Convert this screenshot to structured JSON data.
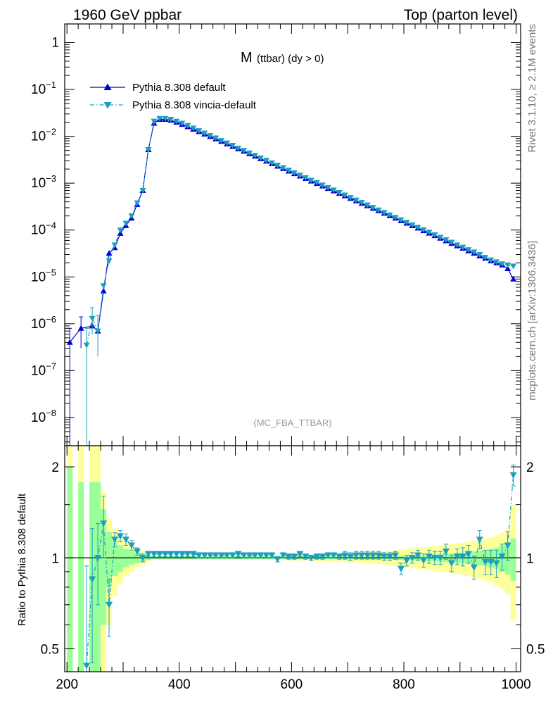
{
  "header": {
    "left": "1960 GeV ppbar",
    "right": "Top (parton level)"
  },
  "side_labels": {
    "rivet": "Rivet 3.1.10, ≥ 2.1M events",
    "mcplots": "mcplots.cern.ch [arXiv:1306.3436]"
  },
  "chart_data": [
    {
      "type": "line",
      "panel": "main",
      "title_main": "M",
      "title_sub": "(ttbar) (dy > 0)",
      "watermark": "(MC_FBA_TTBAR)",
      "xlabel": "",
      "ylabel": "",
      "log_y": true,
      "xlim": [
        196,
        1008
      ],
      "ylim": [
        2.5e-09,
        2.5
      ],
      "y_tick_labels": [
        "1",
        "10^-1",
        "10^-2",
        "10^-3",
        "10^-4",
        "10^-5",
        "10^-6",
        "10^-7",
        "10^-8"
      ],
      "legend_position": "top-left",
      "series": [
        {
          "name": "Pythia 8.308 default",
          "color": "#0000cc",
          "marker": "triangle-up",
          "line": "solid",
          "x": [
            205,
            225,
            245,
            255,
            265,
            275,
            285,
            295,
            305,
            315,
            325,
            335,
            345,
            355,
            365,
            375,
            385,
            395,
            405,
            415,
            425,
            435,
            445,
            455,
            465,
            475,
            485,
            495,
            505,
            515,
            525,
            535,
            545,
            555,
            565,
            575,
            585,
            595,
            605,
            615,
            625,
            635,
            645,
            655,
            665,
            675,
            685,
            695,
            705,
            715,
            725,
            735,
            745,
            755,
            765,
            775,
            785,
            795,
            805,
            815,
            825,
            835,
            845,
            855,
            865,
            875,
            885,
            895,
            905,
            915,
            925,
            935,
            945,
            955,
            965,
            975,
            985,
            995
          ],
          "y": [
            4e-07,
            8e-07,
            9e-07,
            7e-07,
            5e-06,
            3.2e-05,
            4.2e-05,
            8.5e-05,
            0.000125,
            0.00018,
            0.00035,
            0.0007,
            0.0052,
            0.019,
            0.023,
            0.023,
            0.022,
            0.02,
            0.018,
            0.016,
            0.0142,
            0.0126,
            0.0112,
            0.0099,
            0.0088,
            0.0078,
            0.0069,
            0.0061,
            0.0054,
            0.0048,
            0.00425,
            0.00376,
            0.00333,
            0.00295,
            0.00261,
            0.00231,
            0.00205,
            0.00181,
            0.0016,
            0.00142,
            0.00126,
            0.00111,
            0.000985,
            0.000872,
            0.000772,
            0.000684,
            0.000605,
            0.000536,
            0.000474,
            0.00042,
            0.000372,
            0.000329,
            0.000291,
            0.000258,
            0.000228,
            0.000202,
            0.000179,
            0.000158,
            0.00014,
            0.000124,
            0.00011,
            9.7e-05,
            8.6e-05,
            7.6e-05,
            6.7e-05,
            5.9e-05,
            5.2e-05,
            4.6e-05,
            4.1e-05,
            3.6e-05,
            3.2e-05,
            2.8e-05,
            2.5e-05,
            2.2e-05,
            2e-05,
            1.8e-05,
            1.5e-05,
            9e-06
          ]
        },
        {
          "name": "Pythia 8.308 vincia-default",
          "color": "#1a9fbf",
          "marker": "triangle-down",
          "line": "dash-dot",
          "x": [
            235,
            245,
            255,
            265,
            275,
            285,
            295,
            305,
            315,
            325,
            335,
            345,
            355,
            365,
            375,
            385,
            395,
            405,
            415,
            425,
            435,
            445,
            455,
            465,
            475,
            485,
            495,
            505,
            515,
            525,
            535,
            545,
            555,
            565,
            575,
            585,
            595,
            605,
            615,
            625,
            635,
            645,
            655,
            665,
            675,
            685,
            695,
            705,
            715,
            725,
            735,
            745,
            755,
            765,
            775,
            785,
            795,
            805,
            815,
            825,
            835,
            845,
            855,
            865,
            875,
            885,
            895,
            905,
            915,
            925,
            935,
            945,
            955,
            965,
            975,
            985,
            995
          ],
          "y": [
            3.5e-07,
            1.3e-06,
            7e-07,
            6.5e-06,
            2.2e-05,
            4.8e-05,
            0.0001,
            0.00014,
            0.0002,
            0.00038,
            0.0007,
            0.0052,
            0.021,
            0.024,
            0.024,
            0.023,
            0.021,
            0.019,
            0.017,
            0.015,
            0.0132,
            0.0117,
            0.0104,
            0.0092,
            0.0081,
            0.0072,
            0.0064,
            0.0056,
            0.005,
            0.00442,
            0.00392,
            0.00347,
            0.00307,
            0.00272,
            0.00241,
            0.00213,
            0.00189,
            0.00167,
            0.00148,
            0.00131,
            0.00116,
            0.00103,
            0.00091,
            0.000805,
            0.000713,
            0.00063,
            0.000558,
            0.000493,
            0.000437,
            0.000387,
            0.000342,
            0.000303,
            0.000268,
            0.000237,
            0.00021,
            0.000186,
            0.000165,
            0.000146,
            0.000129,
            0.000114,
            0.000101,
            9e-05,
            7.9e-05,
            7e-05,
            6.2e-05,
            5.5e-05,
            4.8e-05,
            4.3e-05,
            3.8e-05,
            3.4e-05,
            3e-05,
            2.6e-05,
            2.3e-05,
            2.1e-05,
            1.9e-05,
            1.8e-05,
            1.7e-05
          ]
        }
      ]
    },
    {
      "type": "line",
      "panel": "ratio",
      "xlabel": "",
      "ylabel": "Ratio to Pythia 8.308 default",
      "log_y": true,
      "xlim": [
        196,
        1008
      ],
      "ylim": [
        0.42,
        2.35
      ],
      "x_ticks": [
        200,
        400,
        600,
        800,
        1000
      ],
      "y_ticks": [
        0.5,
        1,
        2
      ],
      "reference_line": 1,
      "bands": {
        "green_color": "#99ff99",
        "yellow_color": "#ffff99",
        "x": [
          205,
          225,
          245,
          255,
          265,
          275,
          285,
          295,
          305,
          315,
          325,
          335,
          345,
          355,
          365,
          375,
          385,
          395,
          405,
          415,
          425,
          435,
          445,
          455,
          465,
          475,
          485,
          495,
          505,
          515,
          525,
          535,
          545,
          555,
          565,
          575,
          585,
          595,
          605,
          615,
          625,
          635,
          645,
          655,
          665,
          675,
          685,
          695,
          705,
          715,
          725,
          735,
          745,
          755,
          765,
          775,
          785,
          795,
          805,
          815,
          825,
          835,
          845,
          855,
          865,
          875,
          885,
          895,
          905,
          915,
          925,
          935,
          945,
          955,
          965,
          975,
          985,
          995
        ],
        "width": [
          10,
          10,
          10,
          10,
          10,
          10,
          10,
          10,
          10,
          10,
          10,
          10,
          10,
          10,
          10,
          10,
          10,
          10,
          10,
          10,
          10,
          10,
          10,
          10,
          10,
          10,
          10,
          10,
          10,
          10,
          10,
          10,
          10,
          10,
          10,
          10,
          10,
          10,
          10,
          10,
          10,
          10,
          10,
          10,
          10,
          10,
          10,
          10,
          10,
          10,
          10,
          10,
          10,
          10,
          10,
          10,
          10,
          10,
          10,
          10,
          10,
          10,
          10,
          10,
          10,
          10,
          10,
          10,
          10,
          10,
          10,
          10,
          10,
          10,
          10,
          10,
          10,
          10
        ],
        "green_lo": [
          0.42,
          0.42,
          0.42,
          0.42,
          0.6,
          0.8,
          0.87,
          0.9,
          0.93,
          0.95,
          0.96,
          0.97,
          0.985,
          0.99,
          0.99,
          0.99,
          0.99,
          0.99,
          0.99,
          0.99,
          0.99,
          0.99,
          0.99,
          0.99,
          0.99,
          0.99,
          0.99,
          0.99,
          0.99,
          0.99,
          0.99,
          0.99,
          0.99,
          0.99,
          0.99,
          0.99,
          0.99,
          0.99,
          0.99,
          0.99,
          0.99,
          0.99,
          0.99,
          0.99,
          0.99,
          0.99,
          0.99,
          0.99,
          0.99,
          0.99,
          0.99,
          0.99,
          0.99,
          0.99,
          0.99,
          0.99,
          0.985,
          0.985,
          0.985,
          0.98,
          0.98,
          0.98,
          0.975,
          0.975,
          0.97,
          0.97,
          0.965,
          0.96,
          0.96,
          0.955,
          0.95,
          0.945,
          0.94,
          0.93,
          0.92,
          0.9,
          0.88,
          0.84
        ],
        "green_hi": [
          2.0,
          1.78,
          1.78,
          1.78,
          1.45,
          1.22,
          1.14,
          1.1,
          1.07,
          1.05,
          1.04,
          1.03,
          1.015,
          1.01,
          1.01,
          1.01,
          1.01,
          1.01,
          1.01,
          1.01,
          1.01,
          1.01,
          1.01,
          1.01,
          1.01,
          1.01,
          1.01,
          1.01,
          1.01,
          1.01,
          1.01,
          1.01,
          1.01,
          1.01,
          1.01,
          1.01,
          1.01,
          1.01,
          1.01,
          1.01,
          1.01,
          1.01,
          1.01,
          1.01,
          1.01,
          1.01,
          1.01,
          1.01,
          1.01,
          1.01,
          1.01,
          1.01,
          1.01,
          1.01,
          1.01,
          1.01,
          1.015,
          1.015,
          1.015,
          1.02,
          1.02,
          1.02,
          1.025,
          1.025,
          1.03,
          1.03,
          1.035,
          1.04,
          1.04,
          1.045,
          1.05,
          1.055,
          1.06,
          1.07,
          1.08,
          1.1,
          1.12,
          1.16
        ],
        "yellow_lo": [
          0.42,
          0.42,
          0.42,
          0.42,
          0.42,
          0.6,
          0.75,
          0.82,
          0.87,
          0.9,
          0.93,
          0.95,
          0.975,
          0.985,
          0.985,
          0.985,
          0.985,
          0.985,
          0.985,
          0.985,
          0.985,
          0.985,
          0.985,
          0.985,
          0.985,
          0.985,
          0.985,
          0.985,
          0.985,
          0.985,
          0.985,
          0.985,
          0.985,
          0.985,
          0.985,
          0.985,
          0.985,
          0.98,
          0.98,
          0.98,
          0.98,
          0.98,
          0.975,
          0.975,
          0.975,
          0.97,
          0.97,
          0.97,
          0.965,
          0.965,
          0.96,
          0.96,
          0.955,
          0.955,
          0.95,
          0.945,
          0.94,
          0.935,
          0.93,
          0.925,
          0.92,
          0.915,
          0.91,
          0.905,
          0.9,
          0.895,
          0.89,
          0.885,
          0.88,
          0.87,
          0.86,
          0.85,
          0.84,
          0.83,
          0.81,
          0.79,
          0.76,
          0.62
        ],
        "yellow_hi": [
          2.35,
          2.35,
          2.35,
          2.35,
          1.65,
          1.35,
          1.25,
          1.18,
          1.13,
          1.1,
          1.07,
          1.05,
          1.025,
          1.015,
          1.015,
          1.015,
          1.015,
          1.015,
          1.015,
          1.015,
          1.015,
          1.015,
          1.015,
          1.015,
          1.015,
          1.015,
          1.015,
          1.015,
          1.015,
          1.015,
          1.015,
          1.015,
          1.015,
          1.015,
          1.015,
          1.015,
          1.015,
          1.02,
          1.02,
          1.02,
          1.02,
          1.02,
          1.025,
          1.025,
          1.025,
          1.03,
          1.03,
          1.03,
          1.035,
          1.035,
          1.04,
          1.04,
          1.045,
          1.045,
          1.05,
          1.055,
          1.06,
          1.065,
          1.07,
          1.075,
          1.08,
          1.085,
          1.09,
          1.095,
          1.1,
          1.105,
          1.11,
          1.115,
          1.12,
          1.13,
          1.14,
          1.15,
          1.16,
          1.17,
          1.19,
          1.21,
          1.24,
          1.5
        ]
      },
      "series": [
        {
          "name": "Pythia 8.308 vincia-default",
          "color": "#1a9fbf",
          "marker": "triangle-down",
          "line": "dash-dot",
          "x": [
            235,
            245,
            255,
            265,
            275,
            285,
            295,
            305,
            315,
            325,
            335,
            345,
            355,
            365,
            375,
            385,
            395,
            405,
            415,
            425,
            435,
            445,
            455,
            465,
            475,
            485,
            495,
            505,
            515,
            525,
            535,
            545,
            555,
            565,
            575,
            585,
            595,
            605,
            615,
            625,
            635,
            645,
            655,
            665,
            675,
            685,
            695,
            705,
            715,
            725,
            735,
            745,
            755,
            765,
            775,
            785,
            795,
            805,
            815,
            825,
            835,
            845,
            855,
            865,
            875,
            885,
            895,
            905,
            915,
            925,
            935,
            945,
            955,
            965,
            975,
            985,
            995
          ],
          "y": [
            0.44,
            0.85,
            1.0,
            1.3,
            0.7,
            1.15,
            1.18,
            1.15,
            1.1,
            1.05,
            1.0,
            1.03,
            1.03,
            1.03,
            1.03,
            1.03,
            1.03,
            1.03,
            1.03,
            1.03,
            1.02,
            1.02,
            1.02,
            1.02,
            1.02,
            1.02,
            1.02,
            1.03,
            1.02,
            1.02,
            1.02,
            1.02,
            1.02,
            1.02,
            0.99,
            1.02,
            1.01,
            1.01,
            1.03,
            1.01,
            1.0,
            1.01,
            1.01,
            1.02,
            1.02,
            1.01,
            1.02,
            1.01,
            1.02,
            1.02,
            1.02,
            1.02,
            1.02,
            1.01,
            1.01,
            1.02,
            0.92,
            0.98,
            1.0,
            1.02,
            0.98,
            1.01,
            1.0,
            1.0,
            1.05,
            0.96,
            1.01,
            1.01,
            1.03,
            0.93,
            1.15,
            0.97,
            0.97,
            0.96,
            1.01,
            1.1,
            1.88
          ],
          "err": [
            0.5,
            0.4,
            0.3,
            0.3,
            0.15,
            0.06,
            0.05,
            0.05,
            0.04,
            0.03,
            0.03,
            0.02,
            0.02,
            0.02,
            0.02,
            0.02,
            0.02,
            0.02,
            0.02,
            0.02,
            0.02,
            0.02,
            0.02,
            0.02,
            0.02,
            0.02,
            0.02,
            0.02,
            0.02,
            0.02,
            0.02,
            0.02,
            0.02,
            0.02,
            0.02,
            0.02,
            0.02,
            0.02,
            0.02,
            0.02,
            0.02,
            0.02,
            0.02,
            0.02,
            0.02,
            0.02,
            0.03,
            0.03,
            0.03,
            0.03,
            0.03,
            0.03,
            0.03,
            0.03,
            0.03,
            0.03,
            0.04,
            0.04,
            0.04,
            0.04,
            0.05,
            0.05,
            0.05,
            0.05,
            0.06,
            0.06,
            0.06,
            0.07,
            0.07,
            0.08,
            0.08,
            0.09,
            0.09,
            0.1,
            0.1,
            0.12,
            0.15
          ]
        }
      ]
    }
  ]
}
